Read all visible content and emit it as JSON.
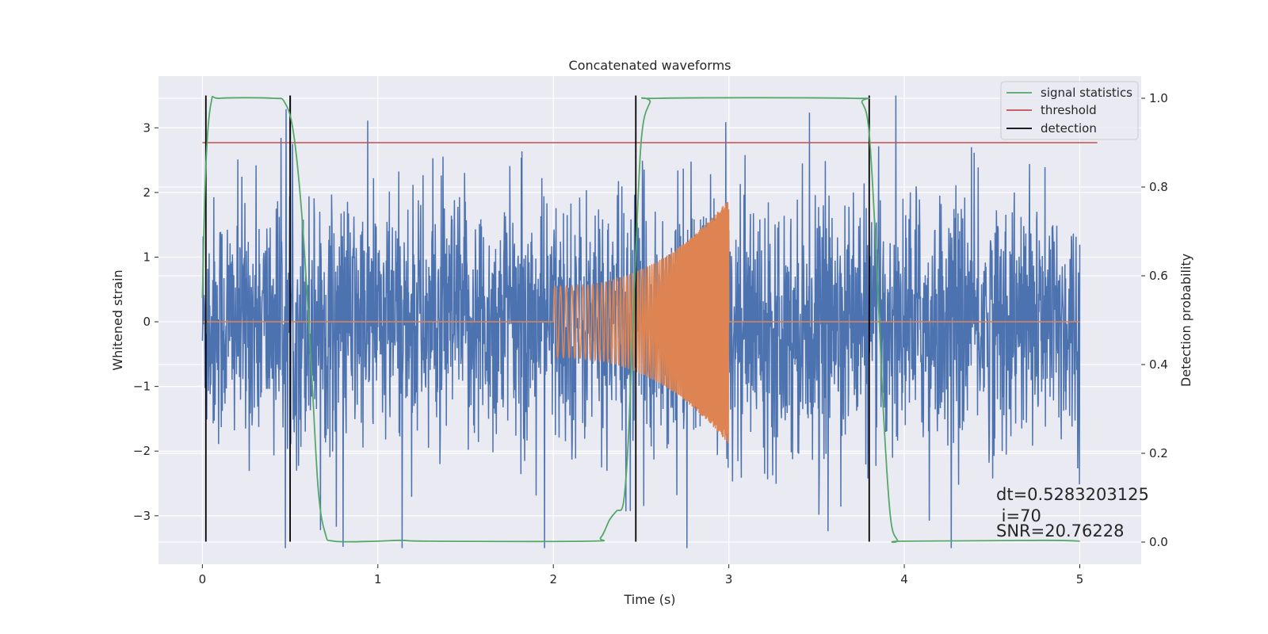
{
  "chart_data": {
    "type": "line",
    "title": "Concatenated waveforms",
    "xlabel": "Time (s)",
    "ylabel_left": "Whitened strain",
    "ylabel_right": "Detection probability",
    "xlim": [
      -0.25,
      5.35
    ],
    "ylim_left": [
      -3.75,
      3.8
    ],
    "ylim_right": [
      -0.05,
      1.05
    ],
    "x_ticks": [
      0,
      1,
      2,
      3,
      4,
      5
    ],
    "x_tick_labels": [
      "0",
      "1",
      "2",
      "3",
      "4",
      "5"
    ],
    "y_left_ticks": [
      -3,
      -2,
      -1,
      0,
      1,
      2,
      3
    ],
    "y_left_tick_labels": [
      "−3",
      "−2",
      "−1",
      "0",
      "1",
      "2",
      "3"
    ],
    "y_right_ticks": [
      0.0,
      0.2,
      0.4,
      0.6,
      0.8,
      1.0
    ],
    "y_right_tick_labels": [
      "0.0",
      "0.2",
      "0.4",
      "0.6",
      "0.8",
      "1.0"
    ],
    "grid": true,
    "legend_position": "top-right",
    "series": [
      {
        "name": "",
        "kind": "whitened_strain_noise",
        "axis": "left",
        "color": "#4c72b0",
        "x_range": [
          0,
          5
        ],
        "typical_amplitude": 1.4,
        "peak_amplitude": 3.5
      },
      {
        "name": "",
        "kind": "injected_chirp",
        "axis": "left",
        "color": "#dd8452",
        "x_range": [
          0,
          5
        ],
        "chirp_start": 2.0,
        "chirp_end": 3.0,
        "start_amplitude": 0.55,
        "end_amplitude": 1.9
      },
      {
        "name": "signal statistics",
        "axis": "right",
        "color": "#55a868",
        "points": [
          [
            0.0,
            0.55
          ],
          [
            0.02,
            0.85
          ],
          [
            0.05,
            0.99
          ],
          [
            0.1,
            1.0
          ],
          [
            0.4,
            1.0
          ],
          [
            0.47,
            0.99
          ],
          [
            0.52,
            0.92
          ],
          [
            0.57,
            0.72
          ],
          [
            0.62,
            0.4
          ],
          [
            0.66,
            0.12
          ],
          [
            0.7,
            0.02
          ],
          [
            0.75,
            0.002
          ],
          [
            1.0,
            0.002
          ],
          [
            1.13,
            0.004
          ],
          [
            1.3,
            0.002
          ],
          [
            2.2,
            0.002
          ],
          [
            2.27,
            0.01
          ],
          [
            2.32,
            0.05
          ],
          [
            2.36,
            0.07
          ],
          [
            2.4,
            0.09
          ],
          [
            2.43,
            0.25
          ],
          [
            2.46,
            0.55
          ],
          [
            2.5,
            0.9
          ],
          [
            2.55,
            0.99
          ],
          [
            2.6,
            1.0
          ],
          [
            3.7,
            1.0
          ],
          [
            3.76,
            0.99
          ],
          [
            3.8,
            0.92
          ],
          [
            3.84,
            0.65
          ],
          [
            3.88,
            0.3
          ],
          [
            3.92,
            0.06
          ],
          [
            3.96,
            0.005
          ],
          [
            4.0,
            0.002
          ],
          [
            4.8,
            0.004
          ],
          [
            5.0,
            0.002
          ]
        ]
      },
      {
        "name": "threshold",
        "axis": "right",
        "color": "#c44e52",
        "x_range": [
          0,
          5.1
        ],
        "value": 0.9
      },
      {
        "name": "detection",
        "axis": "left",
        "color": "#000000",
        "x_values": [
          0.02,
          0.5,
          2.47,
          3.8
        ],
        "y_range": [
          -3.4,
          3.5
        ]
      }
    ],
    "annotations": [
      "dt=0.5283203125",
      " i=70",
      "SNR=20.76228"
    ]
  }
}
